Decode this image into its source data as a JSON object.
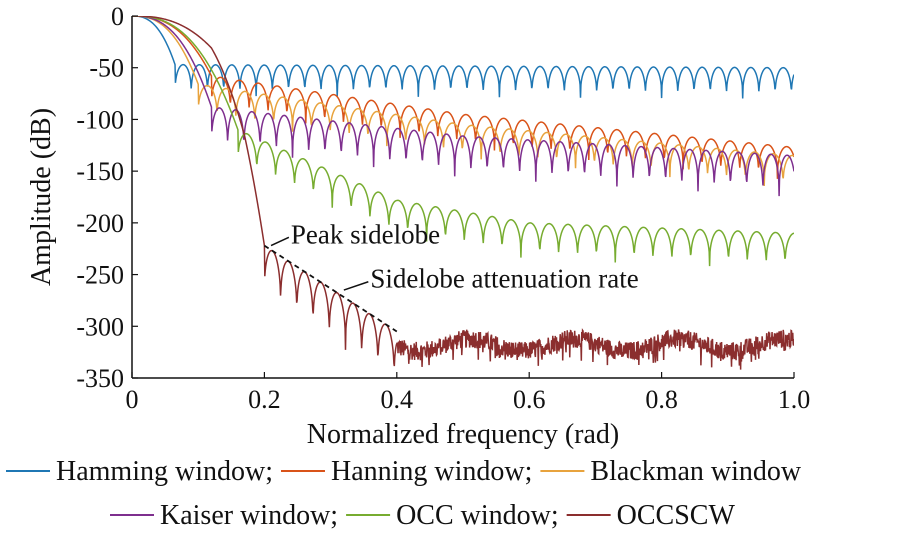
{
  "chart_data": {
    "type": "line",
    "title": "",
    "xlabel": "Normalized frequency (rad)",
    "ylabel": "Amplitude (dB)",
    "xlim": [
      0,
      1.0
    ],
    "ylim": [
      -350,
      0
    ],
    "x_ticks": [
      0,
      0.2,
      0.4,
      0.6,
      0.8,
      1.0
    ],
    "x_tick_labels": [
      "0",
      "0.2",
      "0.4",
      "0.6",
      "0.8",
      "1.0"
    ],
    "y_ticks": [
      0,
      -50,
      -100,
      -150,
      -200,
      -250,
      -300,
      -350
    ],
    "y_tick_labels": [
      "0",
      "-50",
      "-100",
      "-150",
      "-200",
      "-250",
      "-300",
      "-350"
    ],
    "grid": false,
    "legend": {
      "placement": "bottom",
      "entries": [
        "Hamming window;",
        "Hanning window;",
        "Blackman window",
        "Kaiser window;",
        "OCC window;",
        "OCCSCW"
      ]
    },
    "series": [
      {
        "name": "Hamming window",
        "color": "#1f77b4",
        "mainlobe_end": 0.065,
        "envelope": [
          [
            0,
            0
          ],
          [
            0.065,
            -47
          ],
          [
            1.0,
            -50
          ]
        ],
        "null_depth": 30,
        "lobe_period": 0.0245
      },
      {
        "name": "Hanning window",
        "color": "#d95319",
        "mainlobe_end": 0.12,
        "envelope": [
          [
            0,
            0
          ],
          [
            0.12,
            -58
          ],
          [
            0.5,
            -95
          ],
          [
            1.0,
            -127
          ]
        ],
        "null_depth": 32,
        "lobe_period": 0.0285
      },
      {
        "name": "Blackman window",
        "color": "#e8a33d",
        "mainlobe_end": 0.1,
        "envelope": [
          [
            0,
            0
          ],
          [
            0.1,
            -66
          ],
          [
            0.5,
            -105
          ],
          [
            1.0,
            -135
          ]
        ],
        "null_depth": 32,
        "lobe_period": 0.0285
      },
      {
        "name": "Kaiser window",
        "color": "#7e2f8e",
        "mainlobe_end": 0.12,
        "envelope": [
          [
            0,
            0
          ],
          [
            0.12,
            -88
          ],
          [
            0.5,
            -116
          ],
          [
            1.0,
            -135
          ]
        ],
        "null_depth": 40,
        "lobe_period": 0.0245
      },
      {
        "name": "OCC window",
        "color": "#77ac30",
        "mainlobe_end": 0.16,
        "envelope": [
          [
            0,
            0
          ],
          [
            0.16,
            -110
          ],
          [
            0.4,
            -178
          ],
          [
            0.6,
            -200
          ],
          [
            1.0,
            -210
          ]
        ],
        "null_depth": 35,
        "lobe_period": 0.0285
      },
      {
        "name": "OCCSCW",
        "color": "#8b2e2e",
        "mainlobe_end": 0.2,
        "envelope": [
          [
            0,
            0
          ],
          [
            0.12,
            -70
          ],
          [
            0.17,
            -150
          ],
          [
            0.2,
            -222
          ],
          [
            0.4,
            -305
          ],
          [
            1.0,
            -312
          ]
        ],
        "null_depth": 50,
        "lobe_period": 0.0245,
        "noise_floor_start": 0.4,
        "noise_floor": -318
      }
    ],
    "annotations": [
      {
        "text": "Peak sidelobe",
        "x": 0.24,
        "y": -212,
        "point": [
          0.21,
          -222
        ]
      },
      {
        "text": "Sidelobe attenuation rate",
        "x": 0.36,
        "y": -255,
        "point": [
          0.32,
          -265
        ]
      }
    ],
    "attenuation_line": [
      [
        0.2,
        -222
      ],
      [
        0.4,
        -305
      ]
    ]
  }
}
